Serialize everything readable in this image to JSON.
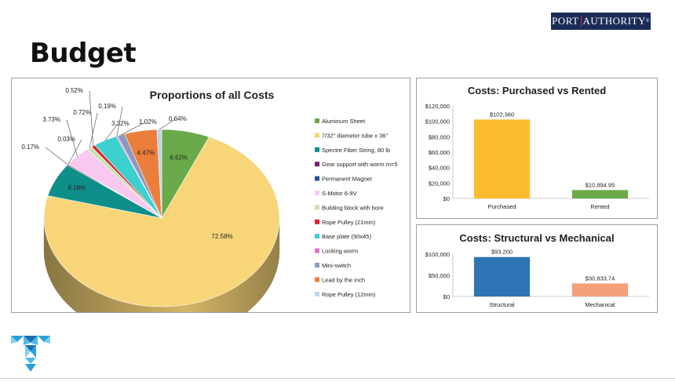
{
  "page": {
    "title": "Budget"
  },
  "logo": {
    "left": "PORT",
    "right": "AUTHORITY",
    "mark": "®"
  },
  "chart_data": [
    {
      "type": "pie",
      "title": "Proportions of all Costs",
      "legend_position": "right",
      "slices": [
        {
          "label": "Aluminum Sheet",
          "pct_label": "6.62%",
          "value": 6.62,
          "color": "#6aaa4a"
        },
        {
          "label": "7/32\" diameter tube x 36\"",
          "pct_label": "72.58%",
          "value": 72.58,
          "color": "#f8d578"
        },
        {
          "label": "Spectre Fiber String, 80 lb",
          "pct_label": "6.18%",
          "value": 6.18,
          "color": "#0f8f8a"
        },
        {
          "label": "Gear support with worm m=5",
          "pct_label": "0.17%",
          "value": 0.17,
          "color": "#7a1e72"
        },
        {
          "label": "Permanent Magnet",
          "pct_label": "0.03%",
          "value": 0.03,
          "color": "#2f4f9a"
        },
        {
          "label": "S-Motor 6-9V",
          "pct_label": "3.73%",
          "value": 3.73,
          "color": "#f8c8ef"
        },
        {
          "label": "Building block with bore",
          "pct_label": "0.72%",
          "value": 0.72,
          "color": "#c6e2b2"
        },
        {
          "label": "Rope Pulley (21mm)",
          "pct_label": "0.52%",
          "value": 0.52,
          "color": "#e0232a"
        },
        {
          "label": "Base plate (90x45)",
          "pct_label": "3.32%",
          "value": 3.32,
          "color": "#3cd0cf"
        },
        {
          "label": "Locking worm",
          "pct_label": "0.19%",
          "value": 0.19,
          "color": "#e672c8"
        },
        {
          "label": "Mini-switch",
          "pct_label": "1.02%",
          "value": 1.02,
          "color": "#8b98c0"
        },
        {
          "label": "Lead by the inch",
          "pct_label": "4.47%",
          "value": 4.47,
          "color": "#ec7e3b"
        },
        {
          "label": "Rope Pulley (12mm)",
          "pct_label": "0.64%",
          "value": 0.64,
          "color": "#bdd3ea"
        }
      ]
    },
    {
      "type": "bar",
      "title": "Costs: Purchased vs Rented",
      "categories": [
        "Purchased",
        "Rented"
      ],
      "values": [
        102360,
        10894.95
      ],
      "value_labels": [
        "$102,360",
        "$10,894.95"
      ],
      "colors": [
        "#fcbc30",
        "#6aaa4a"
      ],
      "ylim": [
        0,
        120000
      ],
      "yticks": [
        0,
        20000,
        40000,
        60000,
        80000,
        100000,
        120000
      ],
      "ytick_labels": [
        "$0",
        "$20,000",
        "$40,000",
        "$60,000",
        "$80,000",
        "$100,000",
        "$120,000"
      ]
    },
    {
      "type": "bar",
      "title": "Costs: Structural vs Mechanical",
      "categories": [
        "Structural",
        "Mechanical"
      ],
      "values": [
        93200,
        30833.74
      ],
      "value_labels": [
        "$93,200",
        "$30,833.74"
      ],
      "colors": [
        "#2e75b6",
        "#f4a07a"
      ],
      "ylim": [
        0,
        100000
      ],
      "yticks": [
        0,
        50000,
        100000
      ],
      "ytick_labels": [
        "$0",
        "$50,000",
        "$100,000"
      ]
    }
  ]
}
